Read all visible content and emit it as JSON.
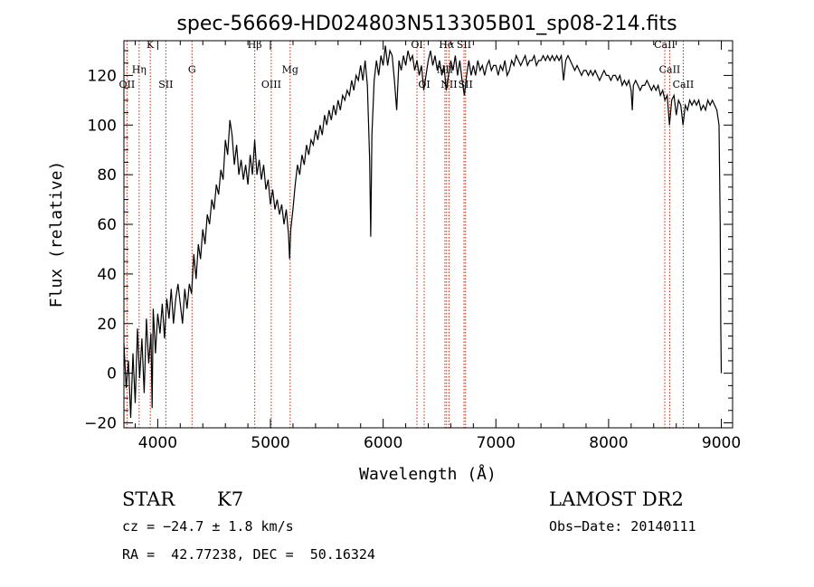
{
  "chart_data": {
    "type": "line",
    "title": "spec-56669-HD024803N513305B01_sp08-214.fits",
    "xlabel": "Wavelength (Å)",
    "ylabel": "Flux (relative)",
    "xlim": [
      3700,
      9100
    ],
    "ylim": [
      -22,
      134
    ],
    "xticks": [
      4000,
      5000,
      6000,
      7000,
      8000,
      9000
    ],
    "yticks": [
      -20,
      0,
      20,
      40,
      60,
      80,
      100,
      120
    ],
    "grid": false,
    "series": [
      {
        "points": [
          [
            3700,
            12
          ],
          [
            3720,
            -6
          ],
          [
            3740,
            5
          ],
          [
            3760,
            -18
          ],
          [
            3780,
            8
          ],
          [
            3800,
            -12
          ],
          [
            3820,
            18
          ],
          [
            3840,
            -2
          ],
          [
            3860,
            14
          ],
          [
            3880,
            -8
          ],
          [
            3900,
            22
          ],
          [
            3920,
            4
          ],
          [
            3940,
            16
          ],
          [
            3950,
            -14
          ],
          [
            3960,
            26
          ],
          [
            3980,
            8
          ],
          [
            4000,
            24
          ],
          [
            4020,
            16
          ],
          [
            4040,
            28
          ],
          [
            4060,
            14
          ],
          [
            4080,
            30
          ],
          [
            4100,
            22
          ],
          [
            4120,
            34
          ],
          [
            4140,
            20
          ],
          [
            4160,
            30
          ],
          [
            4180,
            36
          ],
          [
            4200,
            28
          ],
          [
            4220,
            20
          ],
          [
            4240,
            34
          ],
          [
            4260,
            26
          ],
          [
            4280,
            36
          ],
          [
            4300,
            32
          ],
          [
            4320,
            48
          ],
          [
            4340,
            38
          ],
          [
            4360,
            52
          ],
          [
            4380,
            46
          ],
          [
            4400,
            58
          ],
          [
            4420,
            52
          ],
          [
            4440,
            64
          ],
          [
            4460,
            60
          ],
          [
            4480,
            70
          ],
          [
            4500,
            66
          ],
          [
            4520,
            76
          ],
          [
            4540,
            72
          ],
          [
            4560,
            82
          ],
          [
            4580,
            78
          ],
          [
            4600,
            94
          ],
          [
            4620,
            88
          ],
          [
            4640,
            102
          ],
          [
            4660,
            96
          ],
          [
            4680,
            84
          ],
          [
            4700,
            92
          ],
          [
            4720,
            80
          ],
          [
            4740,
            86
          ],
          [
            4760,
            78
          ],
          [
            4780,
            84
          ],
          [
            4800,
            76
          ],
          [
            4820,
            88
          ],
          [
            4840,
            80
          ],
          [
            4860,
            94
          ],
          [
            4880,
            80
          ],
          [
            4900,
            86
          ],
          [
            4920,
            78
          ],
          [
            4940,
            84
          ],
          [
            4960,
            74
          ],
          [
            4980,
            78
          ],
          [
            5000,
            68
          ],
          [
            5020,
            74
          ],
          [
            5040,
            66
          ],
          [
            5060,
            70
          ],
          [
            5080,
            64
          ],
          [
            5100,
            68
          ],
          [
            5120,
            60
          ],
          [
            5140,
            66
          ],
          [
            5160,
            56
          ],
          [
            5170,
            46
          ],
          [
            5180,
            58
          ],
          [
            5200,
            66
          ],
          [
            5220,
            76
          ],
          [
            5240,
            84
          ],
          [
            5260,
            80
          ],
          [
            5280,
            88
          ],
          [
            5300,
            84
          ],
          [
            5320,
            92
          ],
          [
            5340,
            88
          ],
          [
            5360,
            94
          ],
          [
            5380,
            92
          ],
          [
            5400,
            98
          ],
          [
            5420,
            94
          ],
          [
            5440,
            100
          ],
          [
            5460,
            96
          ],
          [
            5480,
            104
          ],
          [
            5500,
            100
          ],
          [
            5520,
            106
          ],
          [
            5540,
            102
          ],
          [
            5560,
            108
          ],
          [
            5580,
            104
          ],
          [
            5600,
            110
          ],
          [
            5620,
            106
          ],
          [
            5640,
            112
          ],
          [
            5660,
            110
          ],
          [
            5680,
            114
          ],
          [
            5700,
            112
          ],
          [
            5720,
            118
          ],
          [
            5740,
            114
          ],
          [
            5760,
            120
          ],
          [
            5780,
            118
          ],
          [
            5800,
            124
          ],
          [
            5820,
            118
          ],
          [
            5840,
            126
          ],
          [
            5860,
            116
          ],
          [
            5880,
            86
          ],
          [
            5890,
            55
          ],
          [
            5900,
            96
          ],
          [
            5920,
            118
          ],
          [
            5940,
            126
          ],
          [
            5960,
            120
          ],
          [
            5980,
            128
          ],
          [
            6000,
            124
          ],
          [
            6020,
            132
          ],
          [
            6040,
            124
          ],
          [
            6060,
            130
          ],
          [
            6080,
            128
          ],
          [
            6100,
            118
          ],
          [
            6120,
            106
          ],
          [
            6140,
            126
          ],
          [
            6160,
            122
          ],
          [
            6180,
            128
          ],
          [
            6200,
            124
          ],
          [
            6220,
            130
          ],
          [
            6240,
            126
          ],
          [
            6260,
            128
          ],
          [
            6280,
            122
          ],
          [
            6300,
            126
          ],
          [
            6320,
            120
          ],
          [
            6340,
            124
          ],
          [
            6360,
            114
          ],
          [
            6380,
            120
          ],
          [
            6400,
            126
          ],
          [
            6420,
            130
          ],
          [
            6440,
            124
          ],
          [
            6460,
            128
          ],
          [
            6480,
            122
          ],
          [
            6500,
            126
          ],
          [
            6520,
            120
          ],
          [
            6540,
            124
          ],
          [
            6560,
            114
          ],
          [
            6580,
            120
          ],
          [
            6600,
            126
          ],
          [
            6620,
            122
          ],
          [
            6640,
            128
          ],
          [
            6660,
            120
          ],
          [
            6680,
            126
          ],
          [
            6700,
            118
          ],
          [
            6720,
            112
          ],
          [
            6740,
            120
          ],
          [
            6760,
            126
          ],
          [
            6780,
            120
          ],
          [
            6800,
            124
          ],
          [
            6820,
            120
          ],
          [
            6840,
            126
          ],
          [
            6860,
            122
          ],
          [
            6880,
            124
          ],
          [
            6900,
            120
          ],
          [
            6920,
            124
          ],
          [
            6940,
            126
          ],
          [
            6960,
            122
          ],
          [
            6980,
            124
          ],
          [
            7000,
            124
          ],
          [
            7020,
            120
          ],
          [
            7040,
            124
          ],
          [
            7060,
            122
          ],
          [
            7080,
            126
          ],
          [
            7100,
            120
          ],
          [
            7120,
            122
          ],
          [
            7140,
            126
          ],
          [
            7160,
            124
          ],
          [
            7180,
            128
          ],
          [
            7200,
            126
          ],
          [
            7220,
            124
          ],
          [
            7240,
            126
          ],
          [
            7260,
            128
          ],
          [
            7280,
            124
          ],
          [
            7300,
            126
          ],
          [
            7320,
            126
          ],
          [
            7340,
            128
          ],
          [
            7360,
            124
          ],
          [
            7380,
            126
          ],
          [
            7400,
            126
          ],
          [
            7420,
            128
          ],
          [
            7440,
            126
          ],
          [
            7460,
            128
          ],
          [
            7480,
            126
          ],
          [
            7500,
            128
          ],
          [
            7520,
            126
          ],
          [
            7540,
            128
          ],
          [
            7560,
            126
          ],
          [
            7580,
            128
          ],
          [
            7600,
            118
          ],
          [
            7620,
            126
          ],
          [
            7640,
            128
          ],
          [
            7660,
            126
          ],
          [
            7680,
            124
          ],
          [
            7700,
            122
          ],
          [
            7720,
            124
          ],
          [
            7740,
            122
          ],
          [
            7760,
            120
          ],
          [
            7780,
            122
          ],
          [
            7800,
            122
          ],
          [
            7820,
            120
          ],
          [
            7840,
            122
          ],
          [
            7860,
            120
          ],
          [
            7880,
            122
          ],
          [
            7900,
            120
          ],
          [
            7920,
            118
          ],
          [
            7940,
            120
          ],
          [
            7960,
            122
          ],
          [
            7980,
            120
          ],
          [
            8000,
            120
          ],
          [
            8020,
            118
          ],
          [
            8040,
            120
          ],
          [
            8060,
            120
          ],
          [
            8080,
            118
          ],
          [
            8100,
            120
          ],
          [
            8120,
            116
          ],
          [
            8140,
            118
          ],
          [
            8160,
            116
          ],
          [
            8180,
            118
          ],
          [
            8200,
            114
          ],
          [
            8210,
            106
          ],
          [
            8220,
            116
          ],
          [
            8240,
            118
          ],
          [
            8260,
            116
          ],
          [
            8280,
            114
          ],
          [
            8300,
            116
          ],
          [
            8320,
            116
          ],
          [
            8340,
            118
          ],
          [
            8360,
            116
          ],
          [
            8380,
            114
          ],
          [
            8400,
            116
          ],
          [
            8420,
            114
          ],
          [
            8440,
            116
          ],
          [
            8460,
            112
          ],
          [
            8480,
            114
          ],
          [
            8500,
            110
          ],
          [
            8520,
            112
          ],
          [
            8540,
            100
          ],
          [
            8560,
            110
          ],
          [
            8580,
            112
          ],
          [
            8600,
            104
          ],
          [
            8620,
            110
          ],
          [
            8640,
            108
          ],
          [
            8660,
            100
          ],
          [
            8680,
            108
          ],
          [
            8700,
            106
          ],
          [
            8720,
            110
          ],
          [
            8740,
            108
          ],
          [
            8760,
            110
          ],
          [
            8780,
            108
          ],
          [
            8800,
            110
          ],
          [
            8820,
            106
          ],
          [
            8840,
            108
          ],
          [
            8860,
            106
          ],
          [
            8880,
            110
          ],
          [
            8900,
            108
          ],
          [
            8920,
            110
          ],
          [
            8940,
            108
          ],
          [
            8960,
            106
          ],
          [
            8980,
            100
          ],
          [
            8990,
            60
          ],
          [
            8995,
            20
          ],
          [
            9000,
            0
          ]
        ]
      }
    ],
    "lines": [
      {
        "label": "Hη",
        "x": 3835,
        "y": 121
      },
      {
        "label": "K",
        "x": 3934,
        "y": 131
      },
      {
        "label": "OII",
        "x": 3727,
        "y": 115
      },
      {
        "label": "SII",
        "x": 4072,
        "y": 115
      },
      {
        "label": "G",
        "x": 4304,
        "y": 121
      },
      {
        "label": "Hβ",
        "x": 4861,
        "y": 131
      },
      {
        "label": "OIII",
        "x": 5007,
        "y": 115
      },
      {
        "label": "Mg",
        "x": 5175,
        "y": 121
      },
      {
        "label": "OI",
        "x": 6300,
        "y": 131
      },
      {
        "label": "OI",
        "x": 6364,
        "y": 115
      },
      {
        "label": "Hα",
        "x": 6563,
        "y": 131
      },
      {
        "label": "NII",
        "x": 6548,
        "y": 121
      },
      {
        "label": "NII",
        "x": 6584,
        "y": 115
      },
      {
        "label": "SII",
        "x": 6717,
        "y": 131
      },
      {
        "label": "SII",
        "x": 6731,
        "y": 115
      },
      {
        "label": "CaII",
        "x": 8498,
        "y": 131
      },
      {
        "label": "CaII",
        "x": 8542,
        "y": 121
      },
      {
        "label": "CaII",
        "x": 8662,
        "y": 115
      }
    ],
    "line_color": "#cc2200"
  },
  "footer": {
    "object_class": "STAR",
    "subclass": "K7",
    "cz": "cz = −24.7 ± 1.8 km/s",
    "coords": "RA =  42.77238, DEC =  50.16324",
    "survey": "LAMOST DR2",
    "obs_date": "Obs−Date: 20140111"
  }
}
